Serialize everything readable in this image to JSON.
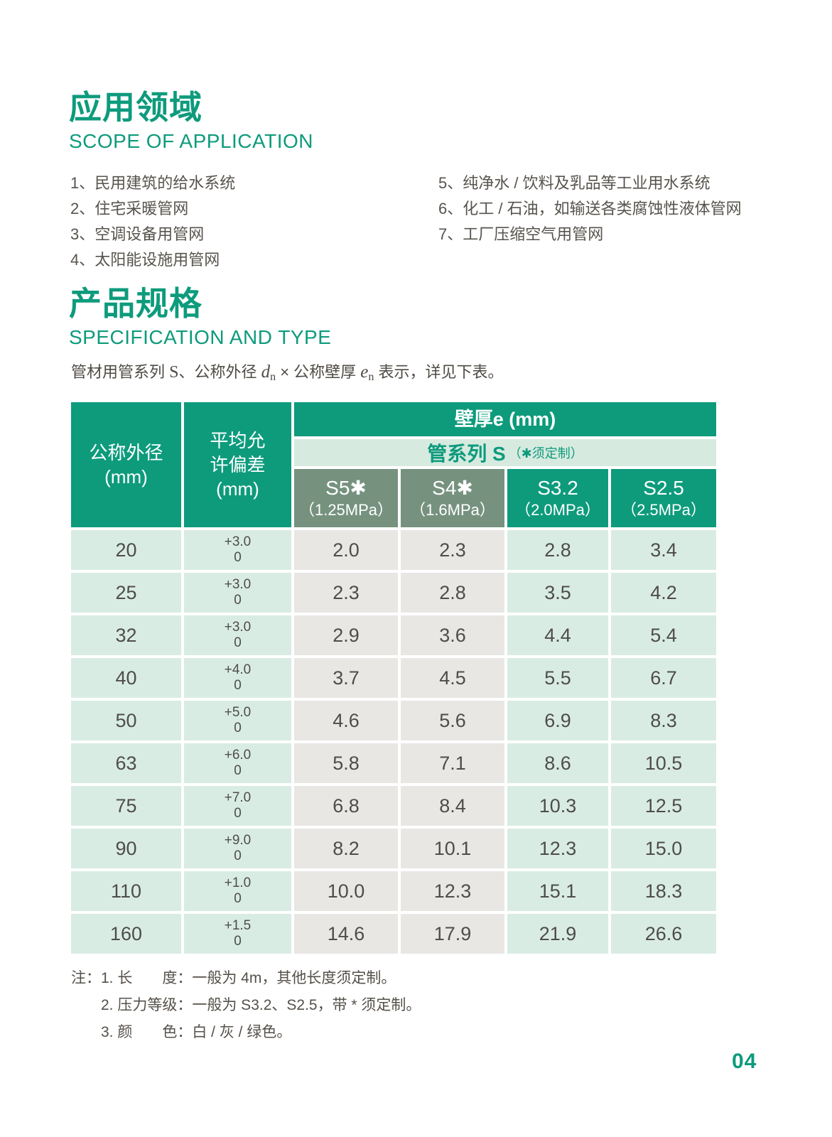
{
  "colors": {
    "teal": "#0d9b7c",
    "sage": "#76927f",
    "light_green": "#d9ece3",
    "light_gray": "#e8e7e4",
    "band_green": "#d7eae0"
  },
  "scope": {
    "title_zh": "应用领域",
    "title_en": "SCOPE OF APPLICATION",
    "items_left": [
      "1、民用建筑的给水系统",
      "2、住宅采暖管网",
      "3、空调设备用管网",
      "4、太阳能设施用管网"
    ],
    "items_right": [
      "5、纯净水 / 饮料及乳品等工业用水系统",
      "6、化工 / 石油，如输送各类腐蚀性液体管网",
      "7、工厂压缩空气用管网"
    ]
  },
  "spec": {
    "title_zh": "产品规格",
    "title_en": "SPECIFICATION AND TYPE",
    "desc": {
      "p1": "管材用管系列 ",
      "s": "S",
      "p2": "、公称外径 ",
      "d": "d",
      "n1": "n",
      "p3": " × 公称壁厚 ",
      "e": "e",
      "n2": "n",
      "p4": " 表示，详见下表。"
    }
  },
  "table": {
    "header": {
      "od_lines": [
        "公称外径",
        "(mm)"
      ],
      "tol_lines": [
        "平均允",
        "许偏差",
        "(mm)"
      ],
      "wall_title": "壁厚e (mm)",
      "series_title": "管系列 S",
      "series_note": "（✱须定制）",
      "series_cols": [
        {
          "name": "S5✱",
          "pressure": "（1.25MPa）",
          "style": "sage"
        },
        {
          "name": "S4✱",
          "pressure": "（1.6MPa）",
          "style": "sage"
        },
        {
          "name": "S3.2",
          "pressure": "（2.0MPa）",
          "style": "teal"
        },
        {
          "name": "S2.5",
          "pressure": "（2.5MPa）",
          "style": "teal"
        }
      ]
    },
    "rows": [
      {
        "od": "20",
        "tol_top": "+3.0",
        "tol_bottom": "0",
        "values": [
          "2.0",
          "2.3",
          "2.8",
          "3.4"
        ]
      },
      {
        "od": "25",
        "tol_top": "+3.0",
        "tol_bottom": "0",
        "values": [
          "2.3",
          "2.8",
          "3.5",
          "4.2"
        ]
      },
      {
        "od": "32",
        "tol_top": "+3.0",
        "tol_bottom": "0",
        "values": [
          "2.9",
          "3.6",
          "4.4",
          "5.4"
        ]
      },
      {
        "od": "40",
        "tol_top": "+4.0",
        "tol_bottom": "0",
        "values": [
          "3.7",
          "4.5",
          "5.5",
          "6.7"
        ]
      },
      {
        "od": "50",
        "tol_top": "+5.0",
        "tol_bottom": "0",
        "values": [
          "4.6",
          "5.6",
          "6.9",
          "8.3"
        ]
      },
      {
        "od": "63",
        "tol_top": "+6.0",
        "tol_bottom": "0",
        "values": [
          "5.8",
          "7.1",
          "8.6",
          "10.5"
        ]
      },
      {
        "od": "75",
        "tol_top": "+7.0",
        "tol_bottom": "0",
        "values": [
          "6.8",
          "8.4",
          "10.3",
          "12.5"
        ]
      },
      {
        "od": "90",
        "tol_top": "+9.0",
        "tol_bottom": "0",
        "values": [
          "8.2",
          "10.1",
          "12.3",
          "15.0"
        ]
      },
      {
        "od": "110",
        "tol_top": "+1.0",
        "tol_bottom": "0",
        "values": [
          "10.0",
          "12.3",
          "15.1",
          "18.3"
        ]
      },
      {
        "od": "160",
        "tol_top": "+1.5",
        "tol_bottom": "0",
        "values": [
          "14.6",
          "17.9",
          "21.9",
          "26.6"
        ]
      }
    ]
  },
  "notes": {
    "label": "注：",
    "items": [
      "1. 长　　度：一般为 4m，其他长度须定制。",
      "2. 压力等级：一般为 S3.2、S2.5，带 * 须定制。",
      "3. 颜　　色：白 / 灰 / 绿色。"
    ]
  },
  "page": {
    "number": "04"
  }
}
